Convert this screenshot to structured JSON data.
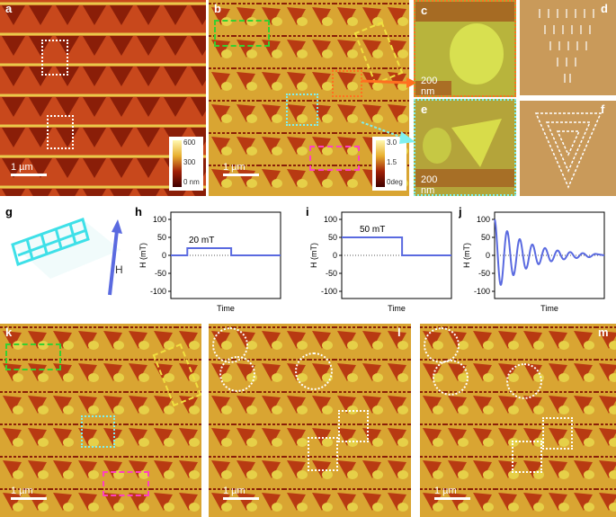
{
  "panels": {
    "a": {
      "label": "a",
      "scale": "1 µm",
      "colorbar": {
        "max": "600",
        "mid": "300",
        "min": "0 nm"
      }
    },
    "b": {
      "label": "b",
      "scale": "1 µm",
      "colorbar": {
        "max": "3.0",
        "mid": "1.5",
        "min": "0deg"
      }
    },
    "c": {
      "label": "c",
      "scale": "200 nm"
    },
    "d": {
      "label": "d"
    },
    "e": {
      "label": "e",
      "scale": "200 nm"
    },
    "f": {
      "label": "f"
    },
    "g": {
      "label": "g",
      "field_label": "H"
    },
    "h": {
      "label": "h",
      "annotation": "20 mT"
    },
    "i": {
      "label": "i",
      "annotation": "50 mT"
    },
    "j": {
      "label": "j"
    },
    "k": {
      "label": "k",
      "scale": "1 µm"
    },
    "l": {
      "label": "l",
      "scale": "1 µm"
    },
    "m": {
      "label": "m",
      "scale": "1 µm"
    }
  },
  "chart_data": [
    {
      "type": "line",
      "panel": "h",
      "title": "",
      "xlabel": "Time",
      "ylabel": "H (mT)",
      "ylim": [
        -120,
        120
      ],
      "yticks": [
        "100",
        "50",
        "0",
        "-50",
        "-100"
      ],
      "series": [
        {
          "x": [
            0,
            0.15,
            0.15,
            0.55,
            0.55,
            1.0
          ],
          "y": [
            0,
            0,
            20,
            20,
            0,
            0
          ]
        }
      ]
    },
    {
      "type": "line",
      "panel": "i",
      "title": "",
      "xlabel": "Time",
      "ylabel": "H (mT)",
      "ylim": [
        -120,
        120
      ],
      "yticks": [
        "100",
        "50",
        "0",
        "-50",
        "-100"
      ],
      "series": [
        {
          "x": [
            0,
            0.55,
            0.55,
            1.0
          ],
          "y": [
            50,
            50,
            0,
            0
          ]
        }
      ]
    },
    {
      "type": "line",
      "panel": "j",
      "title": "",
      "xlabel": "Time",
      "ylabel": "H (mT)",
      "ylim": [
        -120,
        120
      ],
      "yticks": [
        "100",
        "50",
        "0",
        "-50",
        "-100"
      ],
      "series": [
        {
          "description": "damped oscillation",
          "amplitude": 100,
          "cycles": 8
        }
      ]
    }
  ],
  "colors": {
    "afm_dark": "#b52a10",
    "afm_light": "#e8d14a",
    "accent_blue": "#5a6ae0",
    "tile_tan": "#c99a5a"
  }
}
